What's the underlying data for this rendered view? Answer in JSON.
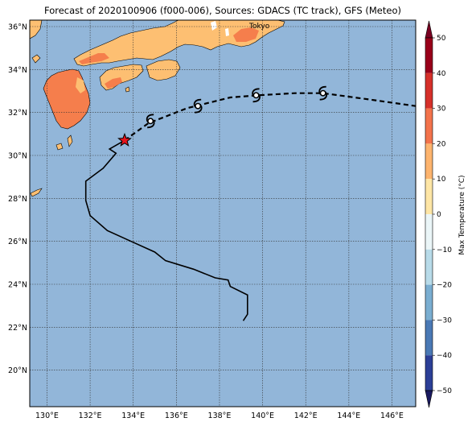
{
  "title": "Forecast of 2020100906 (f000-006), Sources: GDACS (TC track), GFS (Meteo)",
  "city_label": "Tokyo",
  "colorbar": {
    "label": "Max Temperature (°C)",
    "ticks": [
      "50",
      "40",
      "30",
      "20",
      "10",
      "0",
      "−10",
      "−20",
      "−30",
      "−40",
      "−50"
    ]
  },
  "lon_ticks": [
    "130°E",
    "132°E",
    "134°E",
    "136°E",
    "138°E",
    "140°E",
    "142°E",
    "144°E",
    "146°E"
  ],
  "lat_ticks": [
    "36°N",
    "34°N",
    "32°N",
    "30°N",
    "28°N",
    "26°N",
    "24°N",
    "22°N",
    "20°N"
  ],
  "colors": {
    "ocean": "#92b6d9",
    "land_cool": "#fdbf72",
    "land_warm": "#f57e4c",
    "land_hot": "#ffffff"
  },
  "map_extent": {
    "lon": [
      129.2,
      147.1
    ],
    "lat": [
      18.3,
      36.3
    ]
  },
  "storm": {
    "current_position": {
      "lon": 133.6,
      "lat": 30.7
    },
    "past_track": [
      {
        "lon": 139.1,
        "lat": 22.3
      },
      {
        "lon": 139.3,
        "lat": 22.6
      },
      {
        "lon": 139.3,
        "lat": 23.5
      },
      {
        "lon": 138.5,
        "lat": 23.9
      },
      {
        "lon": 138.4,
        "lat": 24.2
      },
      {
        "lon": 137.8,
        "lat": 24.3
      },
      {
        "lon": 136.8,
        "lat": 24.7
      },
      {
        "lon": 135.5,
        "lat": 25.1
      },
      {
        "lon": 135.0,
        "lat": 25.5
      },
      {
        "lon": 133.9,
        "lat": 26.0
      },
      {
        "lon": 132.8,
        "lat": 26.5
      },
      {
        "lon": 132.0,
        "lat": 27.2
      },
      {
        "lon": 131.8,
        "lat": 27.9
      },
      {
        "lon": 131.8,
        "lat": 28.8
      },
      {
        "lon": 132.6,
        "lat": 29.4
      },
      {
        "lon": 133.2,
        "lat": 30.1
      },
      {
        "lon": 132.9,
        "lat": 30.3
      },
      {
        "lon": 133.6,
        "lat": 30.7
      }
    ],
    "forecast_track": [
      {
        "lon": 133.6,
        "lat": 30.7
      },
      {
        "lon": 134.7,
        "lat": 31.5
      },
      {
        "lon": 136.5,
        "lat": 32.2
      },
      {
        "lon": 138.5,
        "lat": 32.7
      },
      {
        "lon": 139.8,
        "lat": 32.8
      },
      {
        "lon": 141.5,
        "lat": 32.9
      },
      {
        "lon": 142.8,
        "lat": 32.9
      },
      {
        "lon": 145.0,
        "lat": 32.6
      },
      {
        "lon": 147.1,
        "lat": 32.3
      }
    ],
    "forecast_symbols": [
      {
        "lon": 134.8,
        "lat": 31.6
      },
      {
        "lon": 137.0,
        "lat": 32.3
      },
      {
        "lon": 139.7,
        "lat": 32.8
      },
      {
        "lon": 142.8,
        "lat": 32.9
      }
    ]
  }
}
